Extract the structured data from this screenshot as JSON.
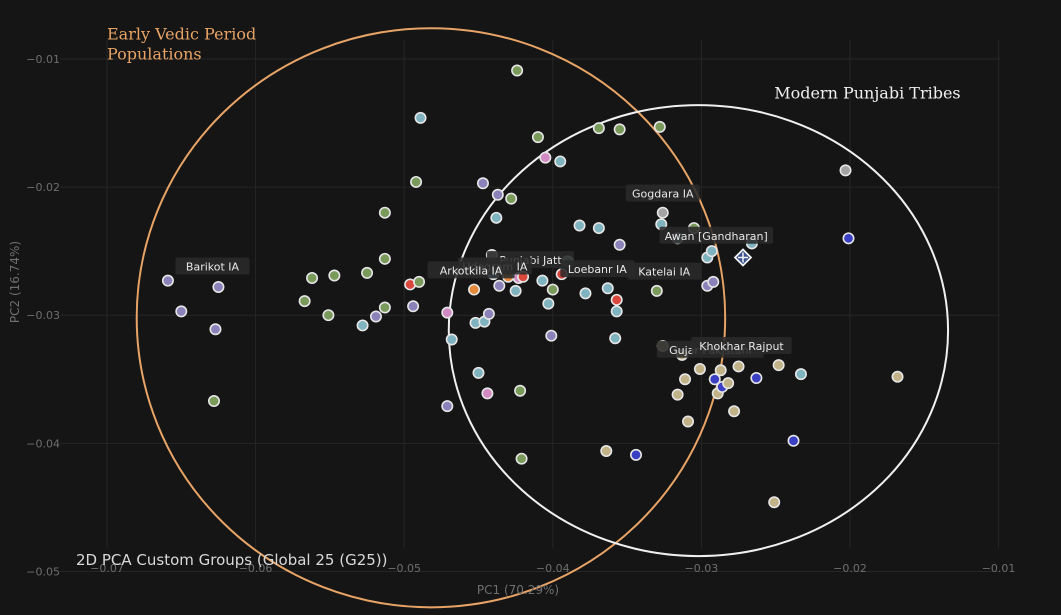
{
  "chart_data": {
    "type": "scatter",
    "title": "2D PCA Custom Groups (Global 25 (G25))",
    "xlabel": "PC1 (70.29%)",
    "ylabel": "PC2 (16.74%)",
    "xlim": [
      -0.0772,
      -0.0058
    ],
    "ylim": [
      -0.0534,
      -0.0054
    ],
    "grid": true,
    "x_ticks": [
      -0.07,
      -0.06,
      -0.05,
      -0.04,
      -0.03,
      -0.02,
      -0.01
    ],
    "x_tick_labels": [
      "−0.07",
      "−0.06",
      "−0.05",
      "−0.04",
      "−0.03",
      "−0.02",
      "−0.01"
    ],
    "y_ticks": [
      -0.01,
      -0.02,
      -0.03,
      -0.04,
      -0.05
    ],
    "y_tick_labels": [
      "−0.01",
      "−0.02",
      "−0.03",
      "−0.04",
      "−0.05"
    ],
    "colors": {
      "green": "#7a9a5c",
      "teal": "#7fb3bf",
      "purple": "#8a82b8",
      "red": "#d9473d",
      "orange": "#e58a3a",
      "pink": "#d28ac3",
      "tan": "#c2b287",
      "blue": "#3b3fc4",
      "gray": "#a3a3a3"
    },
    "points": [
      {
        "x": -0.0659,
        "y": -0.0273,
        "c": "purple"
      },
      {
        "x": -0.065,
        "y": -0.0297,
        "c": "purple"
      },
      {
        "x": -0.0627,
        "y": -0.0311,
        "c": "purple"
      },
      {
        "x": -0.0625,
        "y": -0.0278,
        "c": "purple"
      },
      {
        "x": -0.0628,
        "y": -0.0367,
        "c": "green"
      },
      {
        "x": -0.0567,
        "y": -0.0289,
        "c": "green"
      },
      {
        "x": -0.0562,
        "y": -0.0271,
        "c": "green"
      },
      {
        "x": -0.0551,
        "y": -0.03,
        "c": "green"
      },
      {
        "x": -0.0547,
        "y": -0.0269,
        "c": "green"
      },
      {
        "x": -0.0528,
        "y": -0.0308,
        "c": "teal"
      },
      {
        "x": -0.0525,
        "y": -0.0267,
        "c": "green"
      },
      {
        "x": -0.0519,
        "y": -0.0301,
        "c": "purple"
      },
      {
        "x": -0.0513,
        "y": -0.0294,
        "c": "green"
      },
      {
        "x": -0.0513,
        "y": -0.0256,
        "c": "green"
      },
      {
        "x": -0.0513,
        "y": -0.022,
        "c": "green"
      },
      {
        "x": -0.0496,
        "y": -0.0276,
        "c": "red"
      },
      {
        "x": -0.0494,
        "y": -0.0293,
        "c": "purple"
      },
      {
        "x": -0.0492,
        "y": -0.0196,
        "c": "green"
      },
      {
        "x": -0.0489,
        "y": -0.0146,
        "c": "teal"
      },
      {
        "x": -0.049,
        "y": -0.0274,
        "c": "green"
      },
      {
        "x": -0.0471,
        "y": -0.0298,
        "c": "pink"
      },
      {
        "x": -0.0471,
        "y": -0.0371,
        "c": "purple"
      },
      {
        "x": -0.0468,
        "y": -0.0319,
        "c": "teal"
      },
      {
        "x": -0.0453,
        "y": -0.028,
        "c": "orange"
      },
      {
        "x": -0.0452,
        "y": -0.0306,
        "c": "teal"
      },
      {
        "x": -0.045,
        "y": -0.0345,
        "c": "teal"
      },
      {
        "x": -0.0447,
        "y": -0.0197,
        "c": "purple"
      },
      {
        "x": -0.0446,
        "y": -0.0305,
        "c": "teal"
      },
      {
        "x": -0.0444,
        "y": -0.0361,
        "c": "pink"
      },
      {
        "x": -0.0443,
        "y": -0.0299,
        "c": "purple"
      },
      {
        "x": -0.0441,
        "y": -0.0253,
        "c": "gray"
      },
      {
        "x": -0.044,
        "y": -0.0268,
        "c": "teal"
      },
      {
        "x": -0.0438,
        "y": -0.0224,
        "c": "teal"
      },
      {
        "x": -0.0437,
        "y": -0.0206,
        "c": "purple"
      },
      {
        "x": -0.0436,
        "y": -0.0277,
        "c": "purple"
      },
      {
        "x": -0.0432,
        "y": -0.0263,
        "c": "gray"
      },
      {
        "x": -0.043,
        "y": -0.027,
        "c": "orange"
      },
      {
        "x": -0.0428,
        "y": -0.0209,
        "c": "green"
      },
      {
        "x": -0.0424,
        "y": -0.0109,
        "c": "green"
      },
      {
        "x": -0.0425,
        "y": -0.0281,
        "c": "teal"
      },
      {
        "x": -0.0423,
        "y": -0.0271,
        "c": "pink"
      },
      {
        "x": -0.0422,
        "y": -0.0359,
        "c": "green"
      },
      {
        "x": -0.042,
        "y": -0.027,
        "c": "red"
      },
      {
        "x": -0.0421,
        "y": -0.0412,
        "c": "green"
      },
      {
        "x": -0.041,
        "y": -0.0161,
        "c": "green"
      },
      {
        "x": -0.0407,
        "y": -0.0273,
        "c": "teal"
      },
      {
        "x": -0.0405,
        "y": -0.0177,
        "c": "pink"
      },
      {
        "x": -0.0403,
        "y": -0.0291,
        "c": "teal"
      },
      {
        "x": -0.0401,
        "y": -0.0316,
        "c": "purple"
      },
      {
        "x": -0.04,
        "y": -0.028,
        "c": "green"
      },
      {
        "x": -0.0395,
        "y": -0.018,
        "c": "teal"
      },
      {
        "x": -0.0394,
        "y": -0.0268,
        "c": "red"
      },
      {
        "x": -0.039,
        "y": -0.0258,
        "c": "teal"
      },
      {
        "x": -0.0382,
        "y": -0.023,
        "c": "teal"
      },
      {
        "x": -0.0378,
        "y": -0.0283,
        "c": "teal"
      },
      {
        "x": -0.0369,
        "y": -0.0154,
        "c": "green"
      },
      {
        "x": -0.0369,
        "y": -0.0232,
        "c": "teal"
      },
      {
        "x": -0.0364,
        "y": -0.0406,
        "c": "tan"
      },
      {
        "x": -0.0363,
        "y": -0.0279,
        "c": "teal"
      },
      {
        "x": -0.0358,
        "y": -0.0318,
        "c": "teal"
      },
      {
        "x": -0.0357,
        "y": -0.0288,
        "c": "red"
      },
      {
        "x": -0.0357,
        "y": -0.0297,
        "c": "teal"
      },
      {
        "x": -0.0355,
        "y": -0.0245,
        "c": "purple"
      },
      {
        "x": -0.0355,
        "y": -0.0155,
        "c": "green"
      },
      {
        "x": -0.0344,
        "y": -0.0409,
        "c": "blue"
      },
      {
        "x": -0.0328,
        "y": -0.0153,
        "c": "green"
      },
      {
        "x": -0.0327,
        "y": -0.0229,
        "c": "teal"
      },
      {
        "x": -0.0326,
        "y": -0.022,
        "c": "gray"
      },
      {
        "x": -0.033,
        "y": -0.0281,
        "c": "green"
      },
      {
        "x": -0.0326,
        "y": -0.0324,
        "c": "tan"
      },
      {
        "x": -0.0316,
        "y": -0.024,
        "c": "teal"
      },
      {
        "x": -0.0316,
        "y": -0.0362,
        "c": "tan"
      },
      {
        "x": -0.0313,
        "y": -0.0331,
        "c": "tan"
      },
      {
        "x": -0.0311,
        "y": -0.035,
        "c": "tan"
      },
      {
        "x": -0.0309,
        "y": -0.0383,
        "c": "tan"
      },
      {
        "x": -0.0305,
        "y": -0.0232,
        "c": "green"
      },
      {
        "x": -0.0301,
        "y": -0.0342,
        "c": "tan"
      },
      {
        "x": -0.0296,
        "y": -0.0255,
        "c": "teal"
      },
      {
        "x": -0.0296,
        "y": -0.0277,
        "c": "purple"
      },
      {
        "x": -0.0293,
        "y": -0.025,
        "c": "teal"
      },
      {
        "x": -0.0292,
        "y": -0.0274,
        "c": "purple"
      },
      {
        "x": -0.0291,
        "y": -0.035,
        "c": "blue"
      },
      {
        "x": -0.0289,
        "y": -0.0361,
        "c": "tan"
      },
      {
        "x": -0.0287,
        "y": -0.0343,
        "c": "tan"
      },
      {
        "x": -0.0286,
        "y": -0.0356,
        "c": "blue"
      },
      {
        "x": -0.0282,
        "y": -0.0353,
        "c": "tan"
      },
      {
        "x": -0.0278,
        "y": -0.0375,
        "c": "tan"
      },
      {
        "x": -0.0275,
        "y": -0.034,
        "c": "tan"
      },
      {
        "x": -0.0266,
        "y": -0.0244,
        "c": "teal"
      },
      {
        "x": -0.0263,
        "y": -0.0349,
        "c": "blue"
      },
      {
        "x": -0.0251,
        "y": -0.0446,
        "c": "tan"
      },
      {
        "x": -0.0248,
        "y": -0.0339,
        "c": "tan"
      },
      {
        "x": -0.0238,
        "y": -0.0398,
        "c": "blue"
      },
      {
        "x": -0.0233,
        "y": -0.0346,
        "c": "teal"
      },
      {
        "x": -0.0203,
        "y": -0.0187,
        "c": "gray"
      },
      {
        "x": -0.0201,
        "y": -0.024,
        "c": "blue"
      },
      {
        "x": -0.0168,
        "y": -0.0348,
        "c": "tan"
      }
    ],
    "target_point": {
      "x": -0.0272,
      "y": -0.0255
    },
    "point_labels": [
      {
        "text": "Barikot IA",
        "x": -0.0629,
        "y": -0.0262
      },
      {
        "text": "Gogdara IA",
        "x": -0.0326,
        "y": -0.0205
      },
      {
        "text": "Awan [Gandharan]",
        "x": -0.029,
        "y": -0.0238
      },
      {
        "text": "Punjabi Jatt",
        "x": -0.0415,
        "y": -0.0257
      },
      {
        "text": "Udegram IA",
        "x": -0.0439,
        "y": -0.0262
      },
      {
        "text": "Arkotkila IA",
        "x": -0.0455,
        "y": -0.0265
      },
      {
        "text": "Loebanr IA",
        "x": -0.037,
        "y": -0.0264
      },
      {
        "text": "Katelai IA",
        "x": -0.0325,
        "y": -0.0266
      },
      {
        "text": "Gujar Pakistani",
        "x": -0.0294,
        "y": -0.0327
      },
      {
        "text": "Khokhar Rajput",
        "x": -0.0273,
        "y": -0.0324
      }
    ],
    "regions": [
      {
        "name": "Early Vedic Period Populations",
        "lines": [
          "Early Vedic Period",
          "Populations"
        ],
        "color": "#e8a466",
        "cx": -0.0482,
        "cy": -0.0302,
        "rx": 0.0198,
        "ry": 0.0226,
        "label_x": -0.07,
        "label_y": -0.0085
      },
      {
        "name": "Modern Punjabi Tribes",
        "lines": [
          "Modern Punjabi Tribes"
        ],
        "color": "#f0f0f0",
        "cx": -0.0302,
        "cy": -0.0312,
        "rx": 0.0168,
        "ry": 0.0176,
        "label_x": -0.0251,
        "label_y": -0.0131
      }
    ]
  }
}
